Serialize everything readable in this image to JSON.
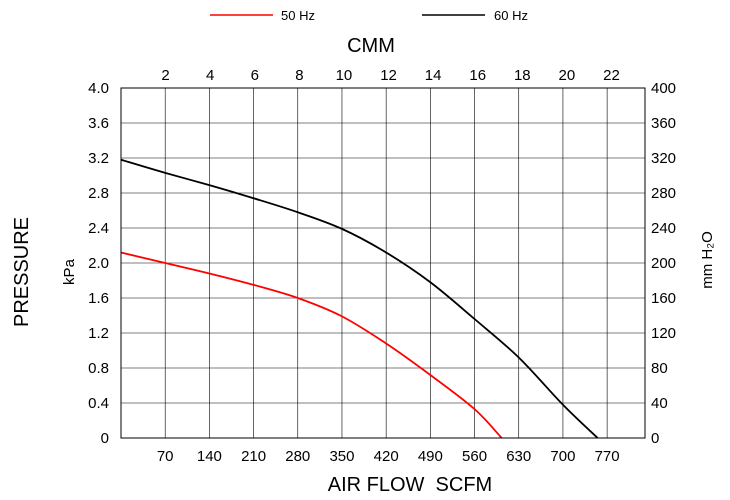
{
  "chart_data": {
    "type": "line",
    "xlabel": "AIR FLOW  SCFM",
    "x2label": "CMM",
    "ylabel": "PRESSURE",
    "y_left_unit": "kPa",
    "y_right_unit": "mm H₂O",
    "x_ticks": [
      "70",
      "140",
      "210",
      "280",
      "350",
      "420",
      "490",
      "560",
      "630",
      "700",
      "770"
    ],
    "x_tick_values": [
      70,
      140,
      210,
      280,
      350,
      420,
      490,
      560,
      630,
      700,
      770
    ],
    "x2_ticks": [
      "2",
      "4",
      "6",
      "8",
      "10",
      "12",
      "14",
      "16",
      "18",
      "20",
      "22"
    ],
    "x2_tick_values_scfm": [
      70.63,
      141.26,
      211.89,
      282.52,
      353.15,
      423.78,
      494.41,
      565.04,
      635.67,
      706.3,
      776.93
    ],
    "y_ticks": [
      "0",
      "0.4",
      "0.8",
      "1.2",
      "1.6",
      "2.0",
      "2.4",
      "2.8",
      "3.2",
      "3.6",
      "4.0"
    ],
    "y_tick_values": [
      0,
      0.4,
      0.8,
      1.2,
      1.6,
      2.0,
      2.4,
      2.8,
      3.2,
      3.6,
      4.0
    ],
    "y2_ticks": [
      "0",
      "40",
      "80",
      "120",
      "160",
      "200",
      "240",
      "280",
      "320",
      "360",
      "400"
    ],
    "xlim": [
      0,
      830
    ],
    "ylim": [
      0,
      4.0
    ],
    "grid": true,
    "legend_position": "top",
    "series": [
      {
        "name": "50 Hz",
        "color": "#ff0000",
        "points": [
          [
            0,
            2.12
          ],
          [
            70,
            2.0
          ],
          [
            140,
            1.88
          ],
          [
            210,
            1.75
          ],
          [
            280,
            1.6
          ],
          [
            350,
            1.39
          ],
          [
            420,
            1.08
          ],
          [
            490,
            0.72
          ],
          [
            560,
            0.33
          ],
          [
            603,
            0.0
          ]
        ]
      },
      {
        "name": "60 Hz",
        "color": "#000000",
        "points": [
          [
            0,
            3.18
          ],
          [
            70,
            3.03
          ],
          [
            140,
            2.89
          ],
          [
            210,
            2.74
          ],
          [
            280,
            2.58
          ],
          [
            350,
            2.39
          ],
          [
            420,
            2.12
          ],
          [
            490,
            1.78
          ],
          [
            560,
            1.36
          ],
          [
            630,
            0.92
          ],
          [
            700,
            0.38
          ],
          [
            755,
            0.0
          ]
        ]
      }
    ]
  }
}
